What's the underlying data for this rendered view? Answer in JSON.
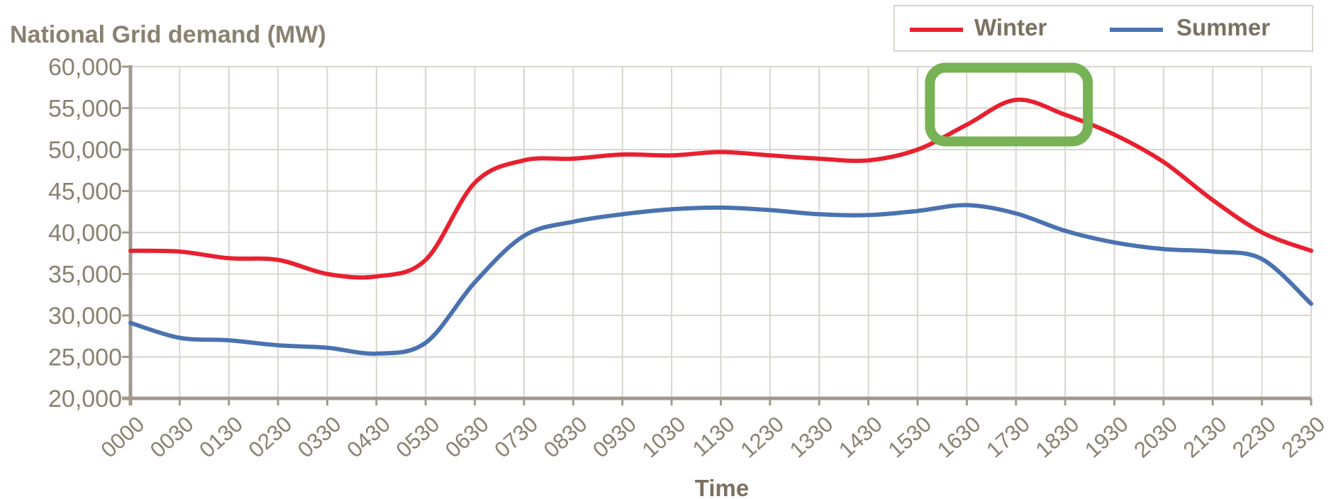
{
  "chart_data": {
    "type": "line",
    "ylabel": "National Grid demand (MW)",
    "xlabel": "Time",
    "ylim": [
      20000,
      60000
    ],
    "yticks": [
      "20,000",
      "25,000",
      "30,000",
      "35,000",
      "40,000",
      "45,000",
      "50,000",
      "55,000",
      "60,000"
    ],
    "ytick_values": [
      20000,
      25000,
      30000,
      35000,
      40000,
      45000,
      50000,
      55000,
      60000
    ],
    "categories": [
      "0000",
      "0030",
      "0130",
      "0230",
      "0330",
      "0430",
      "0530",
      "0630",
      "0730",
      "0830",
      "0930",
      "1030",
      "1130",
      "1230",
      "1330",
      "1430",
      "1530",
      "1630",
      "1730",
      "1830",
      "1930",
      "2030",
      "2130",
      "2230",
      "2330"
    ],
    "grid": true,
    "legend_position": "top-right",
    "series": [
      {
        "name": "Winter",
        "color": "#e8202f",
        "values": [
          37800,
          37700,
          36900,
          36700,
          35000,
          34700,
          36700,
          46000,
          48700,
          48900,
          49400,
          49300,
          49700,
          49300,
          48900,
          48700,
          50000,
          53000,
          56000,
          54200,
          51800,
          48500,
          43900,
          40000,
          37800
        ]
      },
      {
        "name": "Summer",
        "color": "#4a72b0",
        "values": [
          29100,
          27300,
          27000,
          26400,
          26100,
          25400,
          26700,
          34000,
          39600,
          41300,
          42200,
          42800,
          43000,
          42700,
          42200,
          42100,
          42600,
          43300,
          42300,
          40200,
          38800,
          38000,
          37700,
          36800,
          31400
        ]
      }
    ],
    "highlight": {
      "x_start": "1630",
      "x_end": "1830",
      "y_start": 51500,
      "y_end": 58500,
      "color": "#77b255"
    }
  }
}
